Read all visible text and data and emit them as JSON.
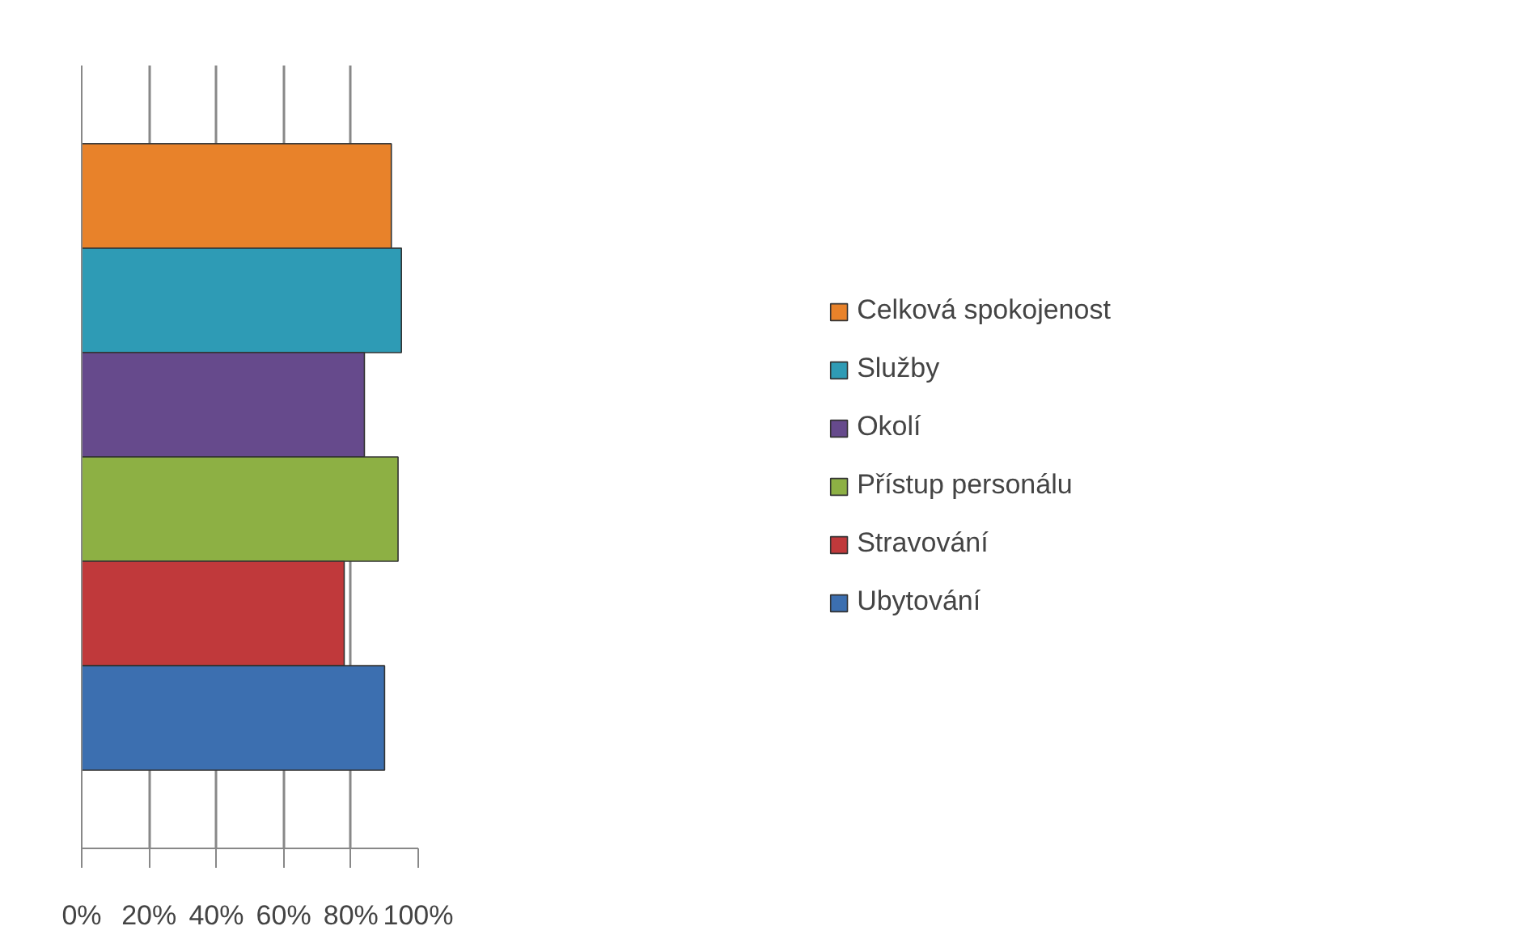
{
  "chart_data": {
    "type": "bar",
    "orientation": "horizontal",
    "categories": [
      null
    ],
    "series": [
      {
        "name": "Celková spokojenost",
        "color": "#e8822a",
        "values": [
          92
        ]
      },
      {
        "name": "Služby",
        "color": "#2e9bb5",
        "values": [
          95
        ]
      },
      {
        "name": "Okolí",
        "color": "#664a8c",
        "values": [
          84
        ]
      },
      {
        "name": "Přístup personálu",
        "color": "#8db044",
        "values": [
          94
        ]
      },
      {
        "name": "Stravování",
        "color": "#c0393b",
        "values": [
          78
        ]
      },
      {
        "name": "Ubytování",
        "color": "#3c6fb0",
        "values": [
          90
        ]
      }
    ],
    "xlim": [
      0,
      100
    ],
    "xticks": [
      {
        "value": 0,
        "label": "0%"
      },
      {
        "value": 20,
        "label": "20%"
      },
      {
        "value": 40,
        "label": "40%"
      },
      {
        "value": 60,
        "label": "60%"
      },
      {
        "value": 80,
        "label": "80%"
      },
      {
        "value": 100,
        "label": "100%"
      }
    ],
    "grid": "x",
    "legend": "right",
    "tick_labels": "x"
  }
}
